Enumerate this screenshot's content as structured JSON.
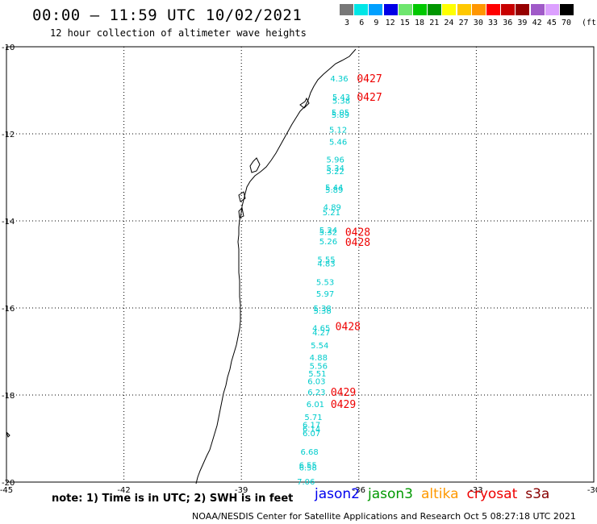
{
  "header": {
    "title": "00:00 – 11:59 UTC 10/02/2021",
    "subtitle": "12 hour collection of altimeter wave heights"
  },
  "legend": {
    "unit": "(ft)",
    "bins": [
      {
        "label": "3",
        "color": "#787878"
      },
      {
        "label": "6",
        "color": "#00e6e6"
      },
      {
        "label": "9",
        "color": "#00a0ff"
      },
      {
        "label": "12",
        "color": "#0000e6"
      },
      {
        "label": "15",
        "color": "#6ee66e"
      },
      {
        "label": "18",
        "color": "#00c800"
      },
      {
        "label": "21",
        "color": "#009600"
      },
      {
        "label": "24",
        "color": "#ffff00"
      },
      {
        "label": "27",
        "color": "#ffc800"
      },
      {
        "label": "30",
        "color": "#ff9600"
      },
      {
        "label": "33",
        "color": "#ff0000"
      },
      {
        "label": "36",
        "color": "#c80000"
      },
      {
        "label": "39",
        "color": "#960000"
      },
      {
        "label": "42",
        "color": "#a05ac8"
      },
      {
        "label": "45",
        "color": "#dca0ff"
      },
      {
        "label": "70",
        "color": "#000000"
      }
    ]
  },
  "map": {
    "lon_range": [
      -45,
      -30
    ],
    "lat_range": [
      -20,
      -10
    ],
    "lon_ticks": [
      "-45",
      "-42",
      "-39",
      "-36",
      "-33",
      "-30"
    ],
    "lat_ticks": [
      "-10",
      "-12",
      "-14",
      "-16",
      "-18",
      "-20"
    ],
    "wave_color": "#00cccc",
    "time_color": "#ee0000",
    "wave_heights": [
      {
        "lon": -36.5,
        "lat": -10.72,
        "v": "4.36"
      },
      {
        "lon": -36.45,
        "lat": -11.15,
        "v": "5.43"
      },
      {
        "lon": -36.45,
        "lat": -11.23,
        "v": "5.38"
      },
      {
        "lon": -36.47,
        "lat": -11.5,
        "v": "5.05"
      },
      {
        "lon": -36.47,
        "lat": -11.56,
        "v": "5.89"
      },
      {
        "lon": -36.53,
        "lat": -11.9,
        "v": "5.12"
      },
      {
        "lon": -36.53,
        "lat": -12.18,
        "v": "5.46"
      },
      {
        "lon": -36.6,
        "lat": -12.58,
        "v": "5.96"
      },
      {
        "lon": -36.6,
        "lat": -12.78,
        "v": "5.34"
      },
      {
        "lon": -36.6,
        "lat": -12.85,
        "v": "5.22"
      },
      {
        "lon": -36.63,
        "lat": -13.22,
        "v": "5.44"
      },
      {
        "lon": -36.63,
        "lat": -13.28,
        "v": "5.89"
      },
      {
        "lon": -36.68,
        "lat": -13.68,
        "v": "4.89"
      },
      {
        "lon": -36.7,
        "lat": -13.8,
        "v": "5.21"
      },
      {
        "lon": -36.78,
        "lat": -14.2,
        "v": "5.24"
      },
      {
        "lon": -36.78,
        "lat": -14.25,
        "v": "5.32"
      },
      {
        "lon": -36.78,
        "lat": -14.46,
        "v": "5.26"
      },
      {
        "lon": -36.83,
        "lat": -14.88,
        "v": "5.55"
      },
      {
        "lon": -36.83,
        "lat": -14.97,
        "v": "4.83"
      },
      {
        "lon": -36.86,
        "lat": -15.4,
        "v": "5.53"
      },
      {
        "lon": -36.86,
        "lat": -15.67,
        "v": "5.97"
      },
      {
        "lon": -36.93,
        "lat": -16.0,
        "v": "5.38"
      },
      {
        "lon": -36.93,
        "lat": -16.06,
        "v": "5.38"
      },
      {
        "lon": -36.96,
        "lat": -16.45,
        "v": "4.65"
      },
      {
        "lon": -36.96,
        "lat": -16.56,
        "v": "4.27"
      },
      {
        "lon": -37.0,
        "lat": -16.85,
        "v": "5.54"
      },
      {
        "lon": -37.03,
        "lat": -17.13,
        "v": "4.88"
      },
      {
        "lon": -37.03,
        "lat": -17.32,
        "v": "5.56"
      },
      {
        "lon": -37.06,
        "lat": -17.5,
        "v": "5.51"
      },
      {
        "lon": -37.08,
        "lat": -17.68,
        "v": "6.03"
      },
      {
        "lon": -37.08,
        "lat": -17.93,
        "v": "6.23"
      },
      {
        "lon": -37.11,
        "lat": -18.2,
        "v": "6.01"
      },
      {
        "lon": -37.16,
        "lat": -18.5,
        "v": "5.71"
      },
      {
        "lon": -37.21,
        "lat": -18.68,
        "v": "6.17"
      },
      {
        "lon": -37.21,
        "lat": -18.77,
        "v": "6.14"
      },
      {
        "lon": -37.21,
        "lat": -18.87,
        "v": "6.07"
      },
      {
        "lon": -37.26,
        "lat": -19.3,
        "v": "6.68"
      },
      {
        "lon": -37.3,
        "lat": -19.6,
        "v": "6.55"
      },
      {
        "lon": -37.3,
        "lat": -19.66,
        "v": "6.58"
      },
      {
        "lon": -37.35,
        "lat": -19.98,
        "v": "7.06"
      }
    ],
    "pass_times": [
      {
        "lon": -36.05,
        "lat": -10.72,
        "v": "0427"
      },
      {
        "lon": -36.05,
        "lat": -11.15,
        "v": "0427"
      },
      {
        "lon": -36.35,
        "lat": -14.25,
        "v": "0428"
      },
      {
        "lon": -36.35,
        "lat": -14.48,
        "v": "0428"
      },
      {
        "lon": -36.6,
        "lat": -16.42,
        "v": "0428"
      },
      {
        "lon": -36.72,
        "lat": -17.93,
        "v": "0429"
      },
      {
        "lon": -36.72,
        "lat": -18.2,
        "v": "0429"
      }
    ]
  },
  "footer": {
    "note": "note: 1) Time is in UTC; 2) SWH is in feet",
    "satellites": [
      {
        "name": "jason2",
        "color": "#0000ee"
      },
      {
        "name": "jason3",
        "color": "#009900"
      },
      {
        "name": "altika",
        "color": "#ff9900"
      },
      {
        "name": "cryosat",
        "color": "#ee0000"
      },
      {
        "name": "s3a",
        "color": "#880000"
      }
    ],
    "credit": "NOAA/NESDIS Center for Satellite Applications and Research   Oct  5 08:27:18 UTC 2021"
  }
}
